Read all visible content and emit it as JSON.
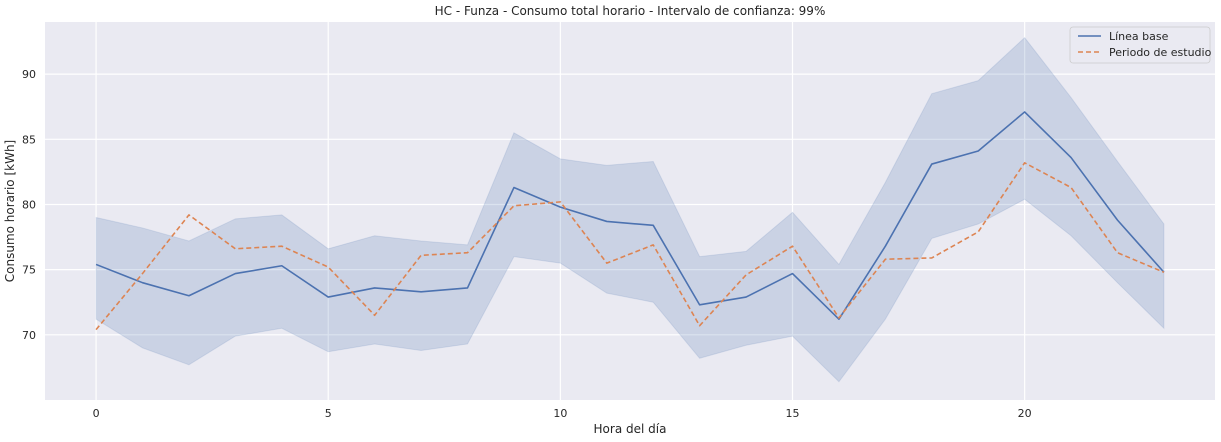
{
  "chart_data": {
    "type": "line",
    "title": "HC - Funza - Consumo total horario - Intervalo de confianza: 99%",
    "xlabel": "Hora del día",
    "ylabel": "Consumo horario [kWh]",
    "xlim": [
      -1.1,
      24.1
    ],
    "ylim": [
      65,
      94
    ],
    "xticks": [
      0,
      5,
      10,
      15,
      20
    ],
    "yticks": [
      70,
      75,
      80,
      85,
      90
    ],
    "grid": true,
    "legend_position": "top-right",
    "x": [
      0,
      1,
      2,
      3,
      4,
      5,
      6,
      7,
      8,
      9,
      10,
      11,
      12,
      13,
      14,
      15,
      16,
      17,
      18,
      19,
      20,
      21,
      22,
      23
    ],
    "series": [
      {
        "name": "Línea base",
        "color": "#4c72b0",
        "style": "solid",
        "values": [
          75.4,
          74.0,
          73.0,
          74.7,
          75.3,
          72.9,
          73.6,
          73.3,
          73.6,
          81.3,
          79.8,
          78.7,
          78.4,
          72.3,
          72.9,
          74.7,
          71.2,
          76.8,
          83.1,
          84.1,
          87.1,
          83.6,
          78.8,
          74.8
        ],
        "ci_upper": [
          79.0,
          78.2,
          77.2,
          78.9,
          79.2,
          76.6,
          77.6,
          77.2,
          76.9,
          85.5,
          83.5,
          83.0,
          83.3,
          76.0,
          76.4,
          79.4,
          75.4,
          81.7,
          88.5,
          89.5,
          92.8,
          88.2,
          83.3,
          78.5
        ],
        "ci_lower": [
          71.2,
          69.0,
          67.7,
          69.9,
          70.5,
          68.7,
          69.3,
          68.8,
          69.3,
          76.0,
          75.5,
          73.2,
          72.5,
          68.2,
          69.2,
          69.9,
          66.4,
          71.2,
          77.4,
          78.5,
          80.4,
          77.6,
          74.0,
          70.5
        ]
      },
      {
        "name": "Periodo de estudio",
        "color": "#dd8452",
        "style": "dashed",
        "values": [
          70.4,
          74.7,
          79.2,
          76.6,
          76.8,
          75.2,
          71.5,
          76.1,
          76.3,
          79.9,
          80.2,
          75.5,
          76.9,
          70.7,
          74.6,
          76.8,
          71.3,
          75.8,
          75.9,
          77.9,
          83.2,
          81.3,
          76.3,
          74.8
        ]
      }
    ]
  }
}
